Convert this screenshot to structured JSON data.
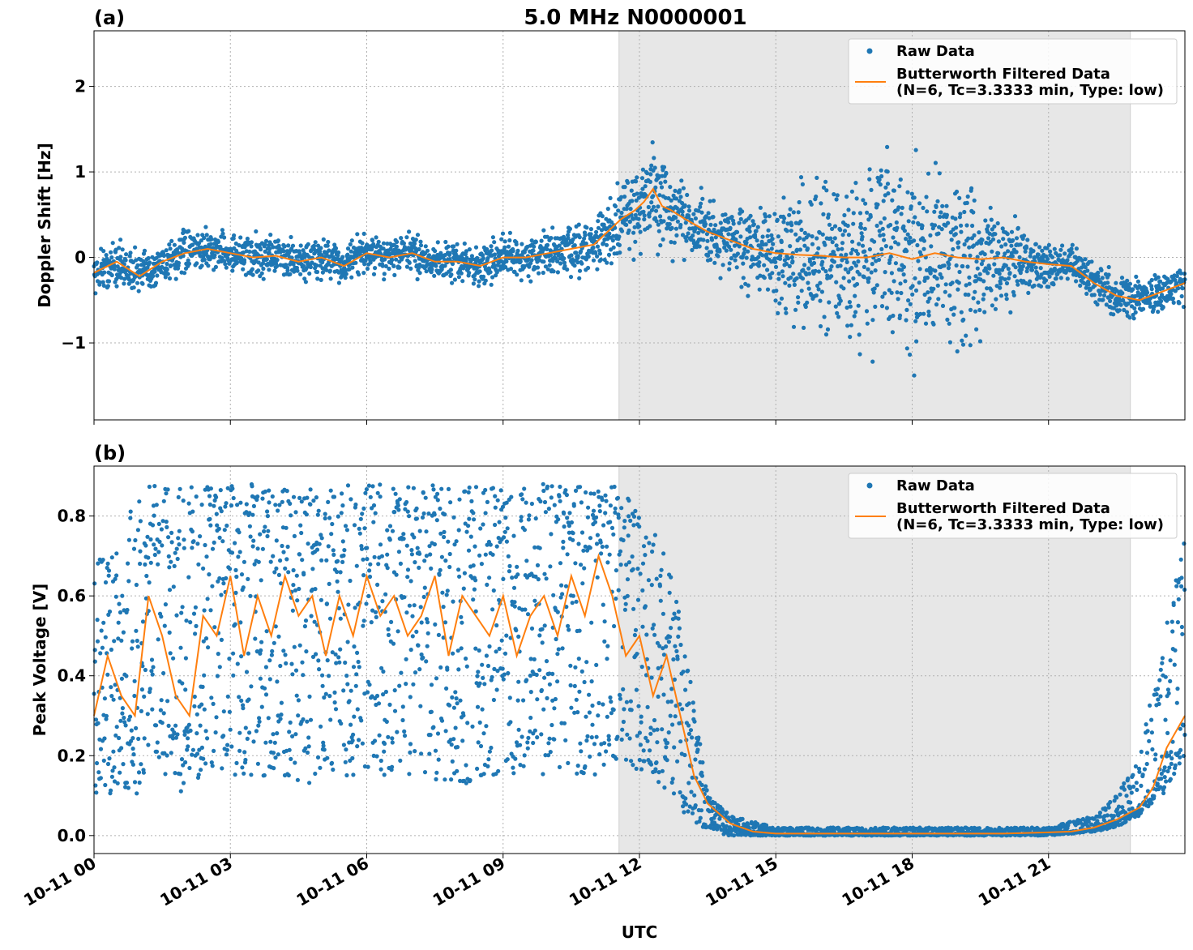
{
  "figure": {
    "title": "5.0 MHz N0000001",
    "xlabel": "UTC",
    "x_ticks": [
      "10-11 00",
      "10-11 03",
      "10-11 06",
      "10-11 09",
      "10-11 12",
      "10-11 15",
      "10-11 18",
      "10-11 21"
    ],
    "legend": {
      "raw": "Raw Data",
      "filtered_line1": "Butterworth Filtered Data",
      "filtered_line2": "(N=6, Tc=3.3333 min, Type: low)",
      "placement": "top-right"
    },
    "colors": {
      "raw": "#1f77b4",
      "filtered": "#ff7f0e",
      "shade": "#e7e7e7",
      "grid": "#b0b0b0"
    },
    "shaded_interval_hours": [
      11.55,
      22.8
    ]
  },
  "chart_data": [
    {
      "panel_label": "(a)",
      "type": "scatter",
      "ylabel": "Doppler Shift [Hz]",
      "xlim_hours": [
        0,
        24
      ],
      "ylim": [
        -1.9,
        2.65
      ],
      "y_ticks": [
        "2",
        "1",
        "0",
        "−1"
      ],
      "y_tick_values": [
        2,
        1,
        0,
        -1
      ],
      "grid": true,
      "series": [
        {
          "name": "Raw Data",
          "style": "points",
          "spread_envelope_x": [
            0,
            1,
            2,
            3,
            4,
            5,
            6,
            7,
            8,
            9,
            10,
            11,
            11.5,
            12,
            12.5,
            13,
            14,
            15,
            16,
            17,
            18,
            19,
            20,
            21,
            22,
            23,
            24
          ],
          "spread_envelope": [
            0.2,
            0.2,
            0.18,
            0.18,
            0.18,
            0.18,
            0.18,
            0.18,
            0.18,
            0.18,
            0.2,
            0.25,
            0.3,
            0.45,
            0.45,
            0.3,
            0.3,
            0.5,
            0.7,
            0.8,
            0.9,
            0.8,
            0.4,
            0.2,
            0.18,
            0.18,
            0.18
          ]
        },
        {
          "name": "Butterworth Filtered Data",
          "style": "line",
          "x": [
            0,
            0.5,
            1,
            1.5,
            2,
            2.5,
            3,
            3.5,
            4,
            4.5,
            5,
            5.5,
            6,
            6.5,
            7,
            7.5,
            8,
            8.5,
            9,
            9.5,
            10,
            10.5,
            11,
            11.3,
            11.6,
            11.9,
            12.1,
            12.3,
            12.5,
            12.7,
            13,
            13.5,
            14,
            14.5,
            15,
            15.5,
            16,
            16.5,
            17,
            17.5,
            18,
            18.5,
            19,
            19.5,
            20,
            20.5,
            21,
            21.5,
            22,
            22.5,
            23,
            23.5,
            24
          ],
          "y": [
            -0.18,
            -0.05,
            -0.22,
            -0.05,
            0.05,
            0.1,
            0.05,
            0.0,
            0.02,
            -0.05,
            0.0,
            -0.1,
            0.05,
            0.0,
            0.05,
            -0.05,
            -0.05,
            -0.1,
            0.0,
            0.0,
            0.05,
            0.1,
            0.15,
            0.3,
            0.45,
            0.55,
            0.65,
            0.8,
            0.6,
            0.55,
            0.45,
            0.3,
            0.2,
            0.1,
            0.05,
            0.03,
            0.02,
            0.0,
            0.0,
            0.05,
            -0.02,
            0.05,
            0.0,
            -0.02,
            0.0,
            -0.05,
            -0.08,
            -0.1,
            -0.3,
            -0.45,
            -0.5,
            -0.4,
            -0.3
          ]
        }
      ]
    },
    {
      "panel_label": "(b)",
      "type": "scatter",
      "ylabel": "Peak Voltage [V]",
      "xlim_hours": [
        0,
        24
      ],
      "ylim": [
        -0.045,
        0.925
      ],
      "y_ticks": [
        "0.8",
        "0.6",
        "0.4",
        "0.2",
        "0.0"
      ],
      "y_tick_values": [
        0.8,
        0.6,
        0.4,
        0.2,
        0.0
      ],
      "grid": true,
      "series": [
        {
          "name": "Raw Data",
          "style": "points",
          "envelope_x": [
            0,
            1,
            1.2,
            2,
            3,
            4,
            5,
            6,
            7,
            8,
            9,
            10,
            11,
            11.6,
            12,
            12.5,
            13,
            13.5,
            14,
            15,
            16,
            17,
            18,
            19,
            20,
            21,
            22,
            22.5,
            23,
            23.5,
            24
          ],
          "envelope_low": [
            0.1,
            0.1,
            0.2,
            0.1,
            0.15,
            0.15,
            0.12,
            0.15,
            0.15,
            0.12,
            0.15,
            0.15,
            0.15,
            0.2,
            0.15,
            0.1,
            0.05,
            0.01,
            0.0,
            0.0,
            0.0,
            0.0,
            0.0,
            0.0,
            0.0,
            0.0,
            0.01,
            0.02,
            0.05,
            0.1,
            0.2
          ],
          "envelope_high": [
            0.7,
            0.85,
            0.88,
            0.88,
            0.88,
            0.88,
            0.88,
            0.88,
            0.88,
            0.88,
            0.88,
            0.88,
            0.88,
            0.88,
            0.8,
            0.75,
            0.5,
            0.1,
            0.05,
            0.02,
            0.02,
            0.02,
            0.02,
            0.02,
            0.02,
            0.02,
            0.05,
            0.1,
            0.2,
            0.5,
            0.8
          ]
        },
        {
          "name": "Butterworth Filtered Data",
          "style": "line",
          "x": [
            0,
            0.3,
            0.6,
            0.9,
            1.2,
            1.5,
            1.8,
            2.1,
            2.4,
            2.7,
            3,
            3.3,
            3.6,
            3.9,
            4.2,
            4.5,
            4.8,
            5.1,
            5.4,
            5.7,
            6,
            6.3,
            6.6,
            6.9,
            7.2,
            7.5,
            7.8,
            8.1,
            8.4,
            8.7,
            9,
            9.3,
            9.6,
            9.9,
            10.2,
            10.5,
            10.8,
            11.1,
            11.4,
            11.7,
            12,
            12.3,
            12.6,
            12.9,
            13.2,
            13.5,
            14,
            14.5,
            15,
            16,
            17,
            18,
            19,
            20,
            21,
            21.5,
            22,
            22.5,
            23,
            23.3,
            23.6,
            24
          ],
          "y": [
            0.3,
            0.45,
            0.35,
            0.3,
            0.6,
            0.5,
            0.35,
            0.3,
            0.55,
            0.5,
            0.65,
            0.45,
            0.6,
            0.5,
            0.65,
            0.55,
            0.6,
            0.45,
            0.6,
            0.5,
            0.65,
            0.55,
            0.6,
            0.5,
            0.55,
            0.65,
            0.45,
            0.6,
            0.55,
            0.5,
            0.6,
            0.45,
            0.55,
            0.6,
            0.5,
            0.65,
            0.55,
            0.7,
            0.6,
            0.45,
            0.5,
            0.35,
            0.45,
            0.3,
            0.15,
            0.08,
            0.03,
            0.01,
            0.005,
            0.005,
            0.005,
            0.005,
            0.005,
            0.005,
            0.008,
            0.01,
            0.02,
            0.04,
            0.07,
            0.12,
            0.22,
            0.3
          ]
        }
      ]
    }
  ]
}
